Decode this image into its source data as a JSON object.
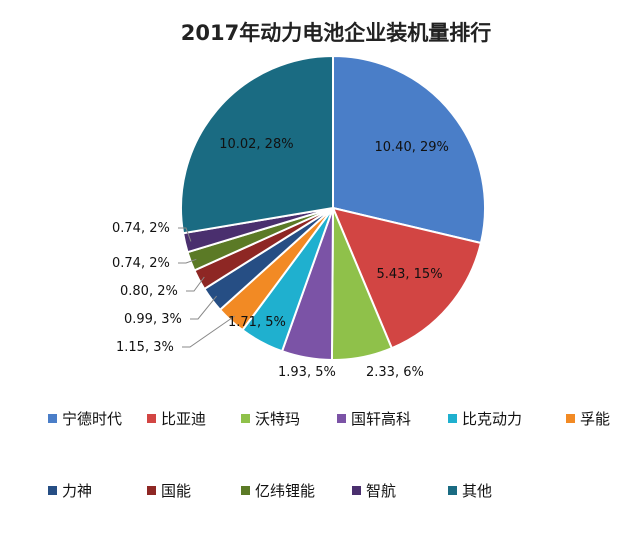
{
  "chart_data": {
    "type": "pie",
    "title": "2017年动力电池企业装机量排行",
    "slices": [
      {
        "name": "宁德时代",
        "value": 10.4,
        "percent": 29,
        "label": "10.40, 29%",
        "color": "#4a7ec8"
      },
      {
        "name": "比亚迪",
        "value": 5.43,
        "percent": 15,
        "label": "5.43, 15%",
        "color": "#d24543"
      },
      {
        "name": "沃特玛",
        "value": 2.33,
        "percent": 6,
        "label": "2.33, 6%",
        "color": "#8fc14a"
      },
      {
        "name": "国轩高科",
        "value": 1.93,
        "percent": 5,
        "label": "1.93, 5%",
        "color": "#7b53a6"
      },
      {
        "name": "比克动力",
        "value": 1.71,
        "percent": 5,
        "label": "1.71, 5%",
        "color": "#1fb0cf"
      },
      {
        "name": "孚能",
        "value": 1.15,
        "percent": 3,
        "label": "1.15, 3%",
        "color": "#f28a24"
      },
      {
        "name": "力神",
        "value": 0.99,
        "percent": 3,
        "label": "0.99, 3%",
        "color": "#264e84"
      },
      {
        "name": "国能",
        "value": 0.8,
        "percent": 2,
        "label": "0.80, 2%",
        "color": "#8e2724"
      },
      {
        "name": "亿纬锂能",
        "value": 0.74,
        "percent": 2,
        "label": "0.74, 2%",
        "color": "#5b7a26"
      },
      {
        "name": "智航",
        "value": 0.74,
        "percent": 2,
        "label": "0.74, 2%",
        "color": "#4a2f6e"
      },
      {
        "name": "其他",
        "value": 10.02,
        "percent": 28,
        "label": "10.02, 28%",
        "color": "#1a6b82"
      }
    ],
    "legend_position": "bottom"
  }
}
